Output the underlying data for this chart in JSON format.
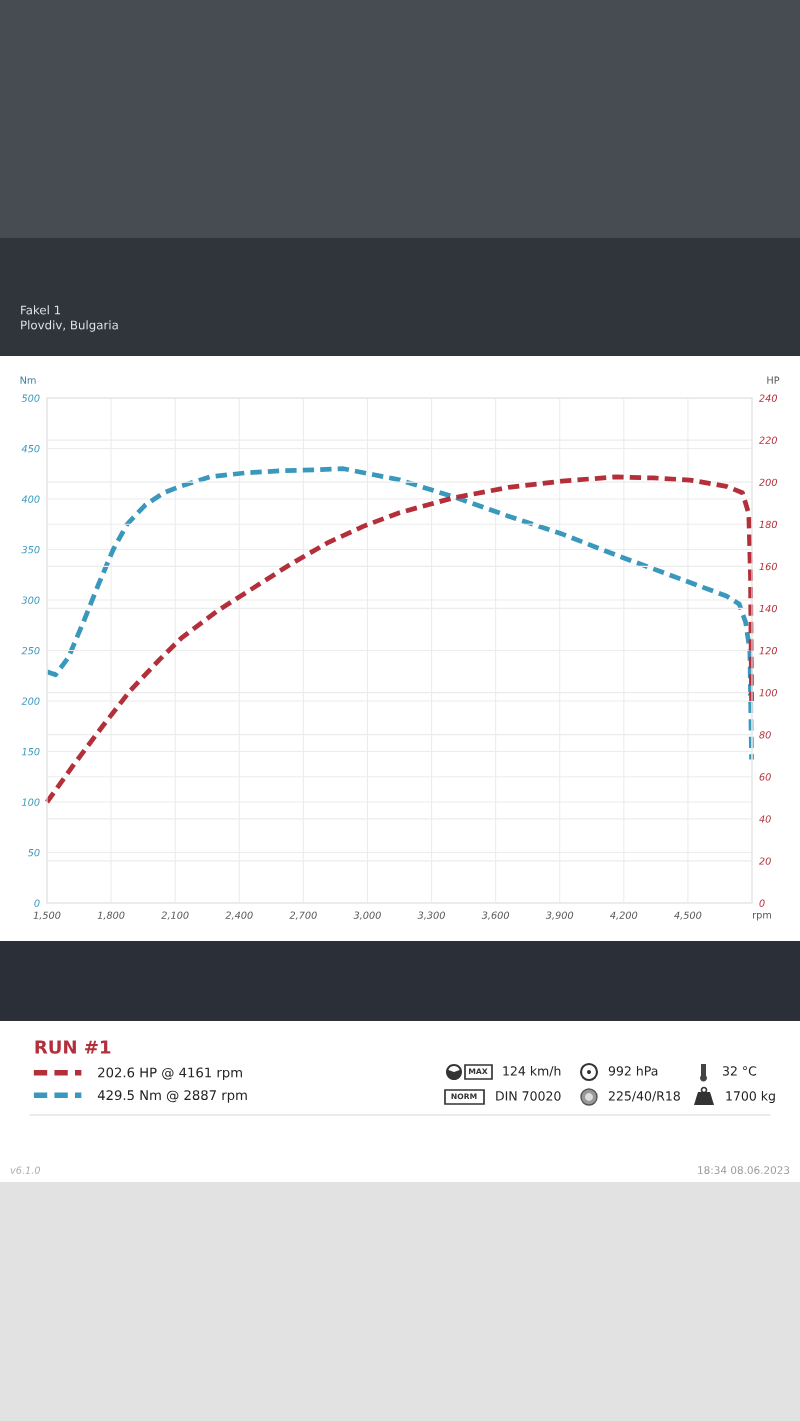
{
  "chart_data": {
    "type": "line",
    "xlabel": "rpm",
    "ylabel": "Nm",
    "y2label": "HP",
    "legend_title": "RUN #1",
    "xlim": [
      1500,
      4800
    ],
    "xticks": [
      {
        "value": 1500,
        "label": "1,500"
      },
      {
        "value": 1800,
        "label": "1,800"
      },
      {
        "value": 2100,
        "label": "2,100"
      },
      {
        "value": 2400,
        "label": "2,400"
      },
      {
        "value": 2700,
        "label": "2,700"
      },
      {
        "value": 3000,
        "label": "3,000"
      },
      {
        "value": 3300,
        "label": "3,300"
      },
      {
        "value": 3600,
        "label": "3,600"
      },
      {
        "value": 3900,
        "label": "3,900"
      },
      {
        "value": 4200,
        "label": "4,200"
      },
      {
        "value": 4500,
        "label": "4,500"
      }
    ],
    "ylim": [
      0,
      500
    ],
    "yticks": [
      0,
      50,
      100,
      150,
      200,
      250,
      300,
      350,
      400,
      450,
      500
    ],
    "y2lim": [
      0,
      240
    ],
    "y2ticks": [
      0,
      20,
      40,
      60,
      80,
      100,
      120,
      140,
      160,
      180,
      200,
      220,
      240
    ],
    "grid": true,
    "legend": "bottom",
    "line_style": "dashed",
    "series": [
      {
        "name": "202.6 HP @ 4161 rpm",
        "color": "#b3303b",
        "axis": "y2",
        "x": [
          1500,
          1620,
          1760,
          1890,
          2030,
          2130,
          2300,
          2470,
          2640,
          2810,
          2980,
          3150,
          3400,
          3660,
          3910,
          4161,
          4340,
          4510,
          4680,
          4755,
          4785,
          4793,
          4798
        ],
        "values": [
          48,
          65,
          84,
          101,
          116,
          126,
          139,
          150,
          161,
          171,
          179,
          185.5,
          192.5,
          197.5,
          200.5,
          202.5,
          202,
          201,
          198,
          195,
          185,
          155,
          96
        ]
      },
      {
        "name": "429.5 Nm @ 2887 rpm",
        "color": "#3a98bd",
        "x": [
          1500,
          1540,
          1600,
          1670,
          1740,
          1810,
          1875,
          1960,
          2045,
          2130,
          2265,
          2435,
          2605,
          2775,
          2887,
          3030,
          3150,
          3420,
          3660,
          3915,
          4170,
          4425,
          4680,
          4740,
          4770,
          4790,
          4798
        ],
        "values": [
          229,
          226,
          243,
          278,
          315,
          350,
          375,
          394,
          406,
          413,
          422,
          426,
          428,
          429,
          430,
          424,
          419,
          401,
          383,
          365,
          344,
          324,
          304,
          296,
          278,
          250,
          142
        ]
      }
    ],
    "annotations": [
      "Fakel 1",
      "Plovdiv, Bulgaria",
      "MAX",
      "124 km/h",
      "NORM",
      "DIN 70020",
      "992 hPa",
      "225/40/R18",
      "32 °C",
      "1700 kg",
      "v6.1.0",
      "18:34 08.06.2023"
    ]
  }
}
